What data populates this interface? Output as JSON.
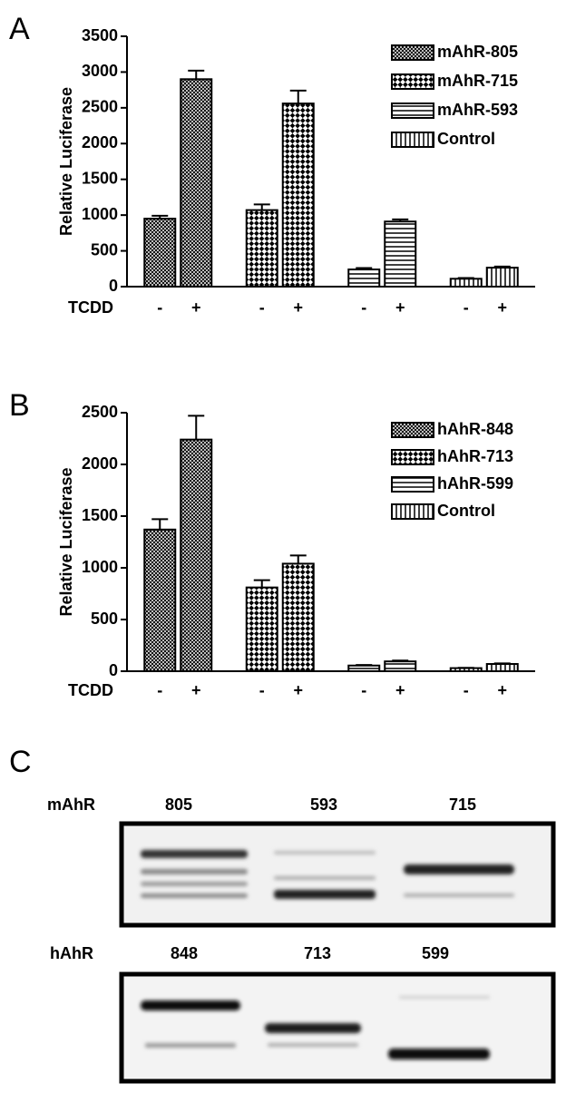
{
  "chart_data": [
    {
      "type": "bar",
      "panel": "A",
      "y_label": "Relative Luciferase",
      "x_label": "TCDD",
      "categories": [
        "-",
        "+",
        "-",
        "+",
        "-",
        "+",
        "-",
        "+"
      ],
      "series": [
        {
          "name": "mAhR-805",
          "pattern": "crosshatch",
          "color": "#000000",
          "values": [
            950,
            2900,
            null,
            null,
            null,
            null,
            null,
            null
          ],
          "errors": [
            40,
            120,
            null,
            null,
            null,
            null,
            null,
            null
          ]
        },
        {
          "name": "mAhR-715",
          "pattern": "checker",
          "color": "#000000",
          "values": [
            null,
            null,
            1070,
            2560,
            null,
            null,
            null,
            null
          ],
          "errors": [
            null,
            null,
            80,
            180,
            null,
            null,
            null,
            null
          ]
        },
        {
          "name": "mAhR-593",
          "pattern": "horizontal",
          "color": "#000000",
          "values": [
            null,
            null,
            null,
            null,
            240,
            910,
            null,
            null
          ],
          "errors": [
            null,
            null,
            null,
            null,
            20,
            30,
            null,
            null
          ]
        },
        {
          "name": "Control",
          "pattern": "vertical",
          "color": "#000000",
          "values": [
            null,
            null,
            null,
            null,
            null,
            null,
            110,
            265
          ],
          "errors": [
            null,
            null,
            null,
            null,
            null,
            null,
            10,
            15
          ]
        }
      ],
      "ylim": [
        0,
        3500
      ],
      "yticks": [
        0,
        500,
        1000,
        1500,
        2000,
        2500,
        3000,
        3500
      ],
      "legend": "upper right"
    },
    {
      "type": "bar",
      "panel": "B",
      "y_label": "Relative Luciferase",
      "x_label": "TCDD",
      "categories": [
        "-",
        "+",
        "-",
        "+",
        "-",
        "+",
        "-",
        "+"
      ],
      "series": [
        {
          "name": "hAhR-848",
          "pattern": "crosshatch",
          "color": "#000000",
          "values": [
            1370,
            2240,
            null,
            null,
            null,
            null,
            null,
            null
          ],
          "errors": [
            100,
            230,
            null,
            null,
            null,
            null,
            null,
            null
          ]
        },
        {
          "name": "hAhR-713",
          "pattern": "checker",
          "color": "#000000",
          "values": [
            null,
            null,
            810,
            1040,
            null,
            null,
            null,
            null
          ],
          "errors": [
            null,
            null,
            70,
            80,
            null,
            null,
            null,
            null
          ]
        },
        {
          "name": "hAhR-599",
          "pattern": "horizontal",
          "color": "#000000",
          "values": [
            null,
            null,
            null,
            null,
            55,
            95,
            null,
            null
          ],
          "errors": [
            null,
            null,
            null,
            null,
            5,
            8,
            null,
            null
          ]
        },
        {
          "name": "Control",
          "pattern": "vertical",
          "color": "#000000",
          "values": [
            null,
            null,
            null,
            null,
            null,
            null,
            30,
            70
          ],
          "errors": [
            null,
            null,
            null,
            null,
            null,
            null,
            3,
            6
          ]
        }
      ],
      "ylim": [
        0,
        2500
      ],
      "yticks": [
        0,
        500,
        1000,
        1500,
        2000,
        2500
      ],
      "legend": "upper right"
    }
  ],
  "blot": {
    "panel": "C",
    "rows": [
      {
        "label": "mAhR",
        "lanes": [
          "805",
          "593",
          "715"
        ]
      },
      {
        "label": "hAhR",
        "lanes": [
          "848",
          "713",
          "599"
        ]
      }
    ]
  }
}
